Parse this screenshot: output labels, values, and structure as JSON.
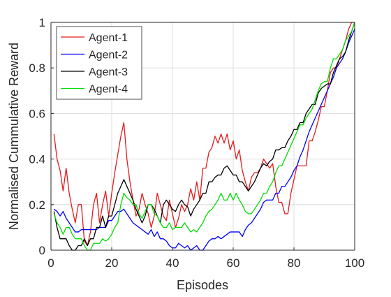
{
  "chart_data": {
    "type": "line",
    "xlabel": "Episodes",
    "ylabel": "Normalised Cummulative Reward",
    "xlim": [
      0,
      100
    ],
    "ylim": [
      0,
      1
    ],
    "xticks": [
      0,
      20,
      40,
      60,
      80,
      100
    ],
    "yticks": [
      0,
      0.2,
      0.4,
      0.6,
      0.8,
      1
    ],
    "xtick_labels": [
      "0",
      "20",
      "40",
      "60",
      "80",
      "100"
    ],
    "ytick_labels": [
      "0",
      "0.2",
      "0.4",
      "0.6",
      "0.8",
      "1"
    ],
    "grid": true,
    "legend_position": "top-left",
    "series": [
      {
        "name": "Agent-1",
        "color": "#e41a1c",
        "x": [
          1,
          2,
          3,
          4,
          5,
          6,
          7,
          8,
          9,
          10,
          11,
          12,
          13,
          14,
          15,
          16,
          17,
          18,
          19,
          20,
          21,
          22,
          23,
          24,
          25,
          26,
          27,
          28,
          29,
          30,
          31,
          32,
          33,
          34,
          35,
          36,
          37,
          38,
          39,
          40,
          41,
          42,
          43,
          44,
          45,
          46,
          47,
          48,
          49,
          50,
          51,
          52,
          53,
          54,
          55,
          56,
          57,
          58,
          59,
          60,
          61,
          62,
          63,
          64,
          65,
          66,
          67,
          68,
          69,
          70,
          71,
          72,
          73,
          74,
          75,
          76,
          77,
          78,
          79,
          80,
          81,
          82,
          83,
          84,
          85,
          86,
          87,
          88,
          89,
          90,
          91,
          92,
          93,
          94,
          95,
          96,
          97,
          98,
          99,
          100
        ],
        "y": [
          0.51,
          0.4,
          0.35,
          0.26,
          0.36,
          0.25,
          0.18,
          0.12,
          0.2,
          0.2,
          0.04,
          0.02,
          0.08,
          0.2,
          0.25,
          0.12,
          0.2,
          0.26,
          0.15,
          0.25,
          0.34,
          0.42,
          0.5,
          0.56,
          0.4,
          0.3,
          0.22,
          0.15,
          0.18,
          0.25,
          0.2,
          0.16,
          0.1,
          0.15,
          0.25,
          0.2,
          0.15,
          0.13,
          0.22,
          0.16,
          0.1,
          0.14,
          0.2,
          0.17,
          0.2,
          0.27,
          0.22,
          0.3,
          0.22,
          0.36,
          0.36,
          0.43,
          0.45,
          0.5,
          0.47,
          0.51,
          0.47,
          0.51,
          0.44,
          0.48,
          0.4,
          0.44,
          0.35,
          0.3,
          0.26,
          0.32,
          0.34,
          0.34,
          0.36,
          0.4,
          0.38,
          0.36,
          0.38,
          0.28,
          0.21,
          0.21,
          0.16,
          0.16,
          0.25,
          0.31,
          0.37,
          0.37,
          0.37,
          0.37,
          0.48,
          0.48,
          0.52,
          0.57,
          0.63,
          0.63,
          0.7,
          0.78,
          0.8,
          0.8,
          0.84,
          0.88,
          0.92,
          0.97,
          1.0,
          1.0
        ]
      },
      {
        "name": "Agent-2",
        "color": "#0000ff",
        "x": [
          1,
          2,
          3,
          4,
          5,
          6,
          7,
          8,
          9,
          10,
          11,
          12,
          13,
          14,
          15,
          16,
          17,
          18,
          19,
          20,
          21,
          22,
          23,
          24,
          25,
          26,
          27,
          28,
          29,
          30,
          31,
          32,
          33,
          34,
          35,
          36,
          37,
          38,
          39,
          40,
          41,
          42,
          43,
          44,
          45,
          46,
          47,
          48,
          49,
          50,
          51,
          52,
          53,
          54,
          55,
          56,
          57,
          58,
          59,
          60,
          61,
          62,
          63,
          64,
          65,
          66,
          67,
          68,
          69,
          70,
          71,
          72,
          73,
          74,
          75,
          76,
          77,
          78,
          79,
          80,
          81,
          82,
          83,
          84,
          85,
          86,
          87,
          88,
          89,
          90,
          91,
          92,
          93,
          94,
          95,
          96,
          97,
          98,
          99,
          100
        ],
        "y": [
          0.18,
          0.17,
          0.15,
          0.17,
          0.14,
          0.12,
          0.1,
          0.08,
          0.08,
          0.09,
          0.09,
          0.09,
          0.09,
          0.09,
          0.09,
          0.1,
          0.1,
          0.1,
          0.13,
          0.13,
          0.15,
          0.17,
          0.17,
          0.18,
          0.16,
          0.14,
          0.12,
          0.11,
          0.1,
          0.09,
          0.08,
          0.07,
          0.09,
          0.06,
          0.08,
          0.05,
          0.05,
          0.04,
          0.02,
          0.01,
          0.01,
          0.03,
          0.02,
          0.01,
          0.02,
          0.0,
          0.01,
          0.02,
          0.0,
          0.0,
          0.02,
          0.04,
          0.05,
          0.05,
          0.06,
          0.05,
          0.06,
          0.07,
          0.08,
          0.08,
          0.08,
          0.08,
          0.06,
          0.09,
          0.11,
          0.12,
          0.14,
          0.16,
          0.18,
          0.21,
          0.22,
          0.22,
          0.22,
          0.25,
          0.25,
          0.28,
          0.28,
          0.3,
          0.32,
          0.35,
          0.37,
          0.41,
          0.44,
          0.48,
          0.52,
          0.55,
          0.58,
          0.61,
          0.64,
          0.67,
          0.7,
          0.73,
          0.76,
          0.8,
          0.82,
          0.84,
          0.87,
          0.91,
          0.94,
          0.97
        ]
      },
      {
        "name": "Agent-3",
        "color": "#000000",
        "x": [
          1,
          2,
          3,
          4,
          5,
          6,
          7,
          8,
          9,
          10,
          11,
          12,
          13,
          14,
          15,
          16,
          17,
          18,
          19,
          20,
          21,
          22,
          23,
          24,
          25,
          26,
          27,
          28,
          29,
          30,
          31,
          32,
          33,
          34,
          35,
          36,
          37,
          38,
          39,
          40,
          41,
          42,
          43,
          44,
          45,
          46,
          47,
          48,
          49,
          50,
          51,
          52,
          53,
          54,
          55,
          56,
          57,
          58,
          59,
          60,
          61,
          62,
          63,
          64,
          65,
          66,
          67,
          68,
          69,
          70,
          71,
          72,
          73,
          74,
          75,
          76,
          77,
          78,
          79,
          80,
          81,
          82,
          83,
          84,
          85,
          86,
          87,
          88,
          89,
          90,
          91,
          92,
          93,
          94,
          95,
          96,
          97,
          98,
          99,
          100
        ],
        "y": [
          0.17,
          0.1,
          0.05,
          0.05,
          0.05,
          0.02,
          0.0,
          0.0,
          0.02,
          0.02,
          0.05,
          0.02,
          0.05,
          0.05,
          0.1,
          0.1,
          0.15,
          0.1,
          0.15,
          0.15,
          0.2,
          0.25,
          0.28,
          0.31,
          0.28,
          0.25,
          0.22,
          0.18,
          0.15,
          0.12,
          0.15,
          0.2,
          0.2,
          0.18,
          0.15,
          0.12,
          0.2,
          0.22,
          0.2,
          0.18,
          0.17,
          0.2,
          0.22,
          0.2,
          0.19,
          0.15,
          0.18,
          0.2,
          0.22,
          0.25,
          0.25,
          0.3,
          0.3,
          0.32,
          0.33,
          0.33,
          0.36,
          0.37,
          0.35,
          0.33,
          0.33,
          0.3,
          0.3,
          0.28,
          0.26,
          0.28,
          0.3,
          0.33,
          0.36,
          0.38,
          0.37,
          0.39,
          0.4,
          0.44,
          0.44,
          0.45,
          0.45,
          0.48,
          0.5,
          0.53,
          0.53,
          0.56,
          0.56,
          0.6,
          0.62,
          0.64,
          0.64,
          0.69,
          0.71,
          0.72,
          0.73,
          0.73,
          0.78,
          0.81,
          0.84,
          0.85,
          0.87,
          0.92,
          0.96,
          1.0
        ]
      },
      {
        "name": "Agent-4",
        "color": "#00dd00",
        "x": [
          1,
          2,
          3,
          4,
          5,
          6,
          7,
          8,
          9,
          10,
          11,
          12,
          13,
          14,
          15,
          16,
          17,
          18,
          19,
          20,
          21,
          22,
          23,
          24,
          25,
          26,
          27,
          28,
          29,
          30,
          31,
          32,
          33,
          34,
          35,
          36,
          37,
          38,
          39,
          40,
          41,
          42,
          43,
          44,
          45,
          46,
          47,
          48,
          49,
          50,
          51,
          52,
          53,
          54,
          55,
          56,
          57,
          58,
          59,
          60,
          61,
          62,
          63,
          64,
          65,
          66,
          67,
          68,
          69,
          70,
          71,
          72,
          73,
          74,
          75,
          76,
          77,
          78,
          79,
          80,
          81,
          82,
          83,
          84,
          85,
          86,
          87,
          88,
          89,
          90,
          91,
          92,
          93,
          94,
          95,
          96,
          97,
          98,
          99,
          100
        ],
        "y": [
          0.16,
          0.12,
          0.1,
          0.07,
          0.1,
          0.1,
          0.07,
          0.05,
          0.05,
          0.05,
          0.02,
          0.0,
          0.0,
          0.03,
          0.03,
          0.03,
          0.05,
          0.04,
          0.05,
          0.07,
          0.1,
          0.12,
          0.2,
          0.25,
          0.23,
          0.22,
          0.2,
          0.2,
          0.16,
          0.14,
          0.17,
          0.2,
          0.2,
          0.16,
          0.15,
          0.12,
          0.1,
          0.1,
          0.12,
          0.09,
          0.1,
          0.1,
          0.1,
          0.12,
          0.1,
          0.08,
          0.09,
          0.08,
          0.1,
          0.12,
          0.15,
          0.17,
          0.18,
          0.2,
          0.22,
          0.25,
          0.22,
          0.22,
          0.25,
          0.22,
          0.25,
          0.22,
          0.2,
          0.17,
          0.16,
          0.16,
          0.18,
          0.2,
          0.22,
          0.25,
          0.25,
          0.28,
          0.3,
          0.34,
          0.37,
          0.37,
          0.4,
          0.43,
          0.46,
          0.49,
          0.52,
          0.55,
          0.55,
          0.58,
          0.6,
          0.62,
          0.66,
          0.7,
          0.73,
          0.74,
          0.74,
          0.8,
          0.84,
          0.84,
          0.86,
          0.88,
          0.92,
          0.94,
          0.96,
          1.0
        ]
      }
    ]
  }
}
